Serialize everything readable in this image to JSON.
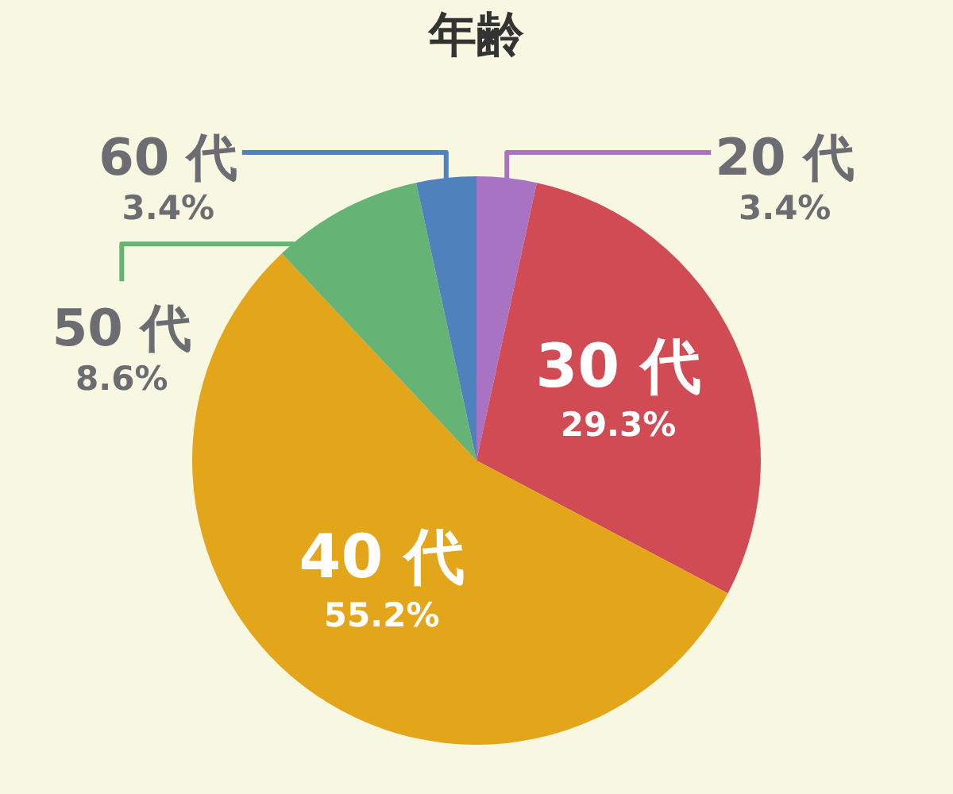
{
  "chart_data": {
    "type": "pie",
    "title": "年齢",
    "categories": [
      "20 代",
      "30 代",
      "40 代",
      "50 代",
      "60 代"
    ],
    "values": [
      3.4,
      29.3,
      55.2,
      8.6,
      3.4
    ],
    "value_labels": [
      "3.4%",
      "29.3%",
      "55.2%",
      "8.6%",
      "3.4%"
    ],
    "colors": [
      "#a973c4",
      "#d14b55",
      "#e3a51a",
      "#66b475",
      "#4f81bd"
    ]
  }
}
